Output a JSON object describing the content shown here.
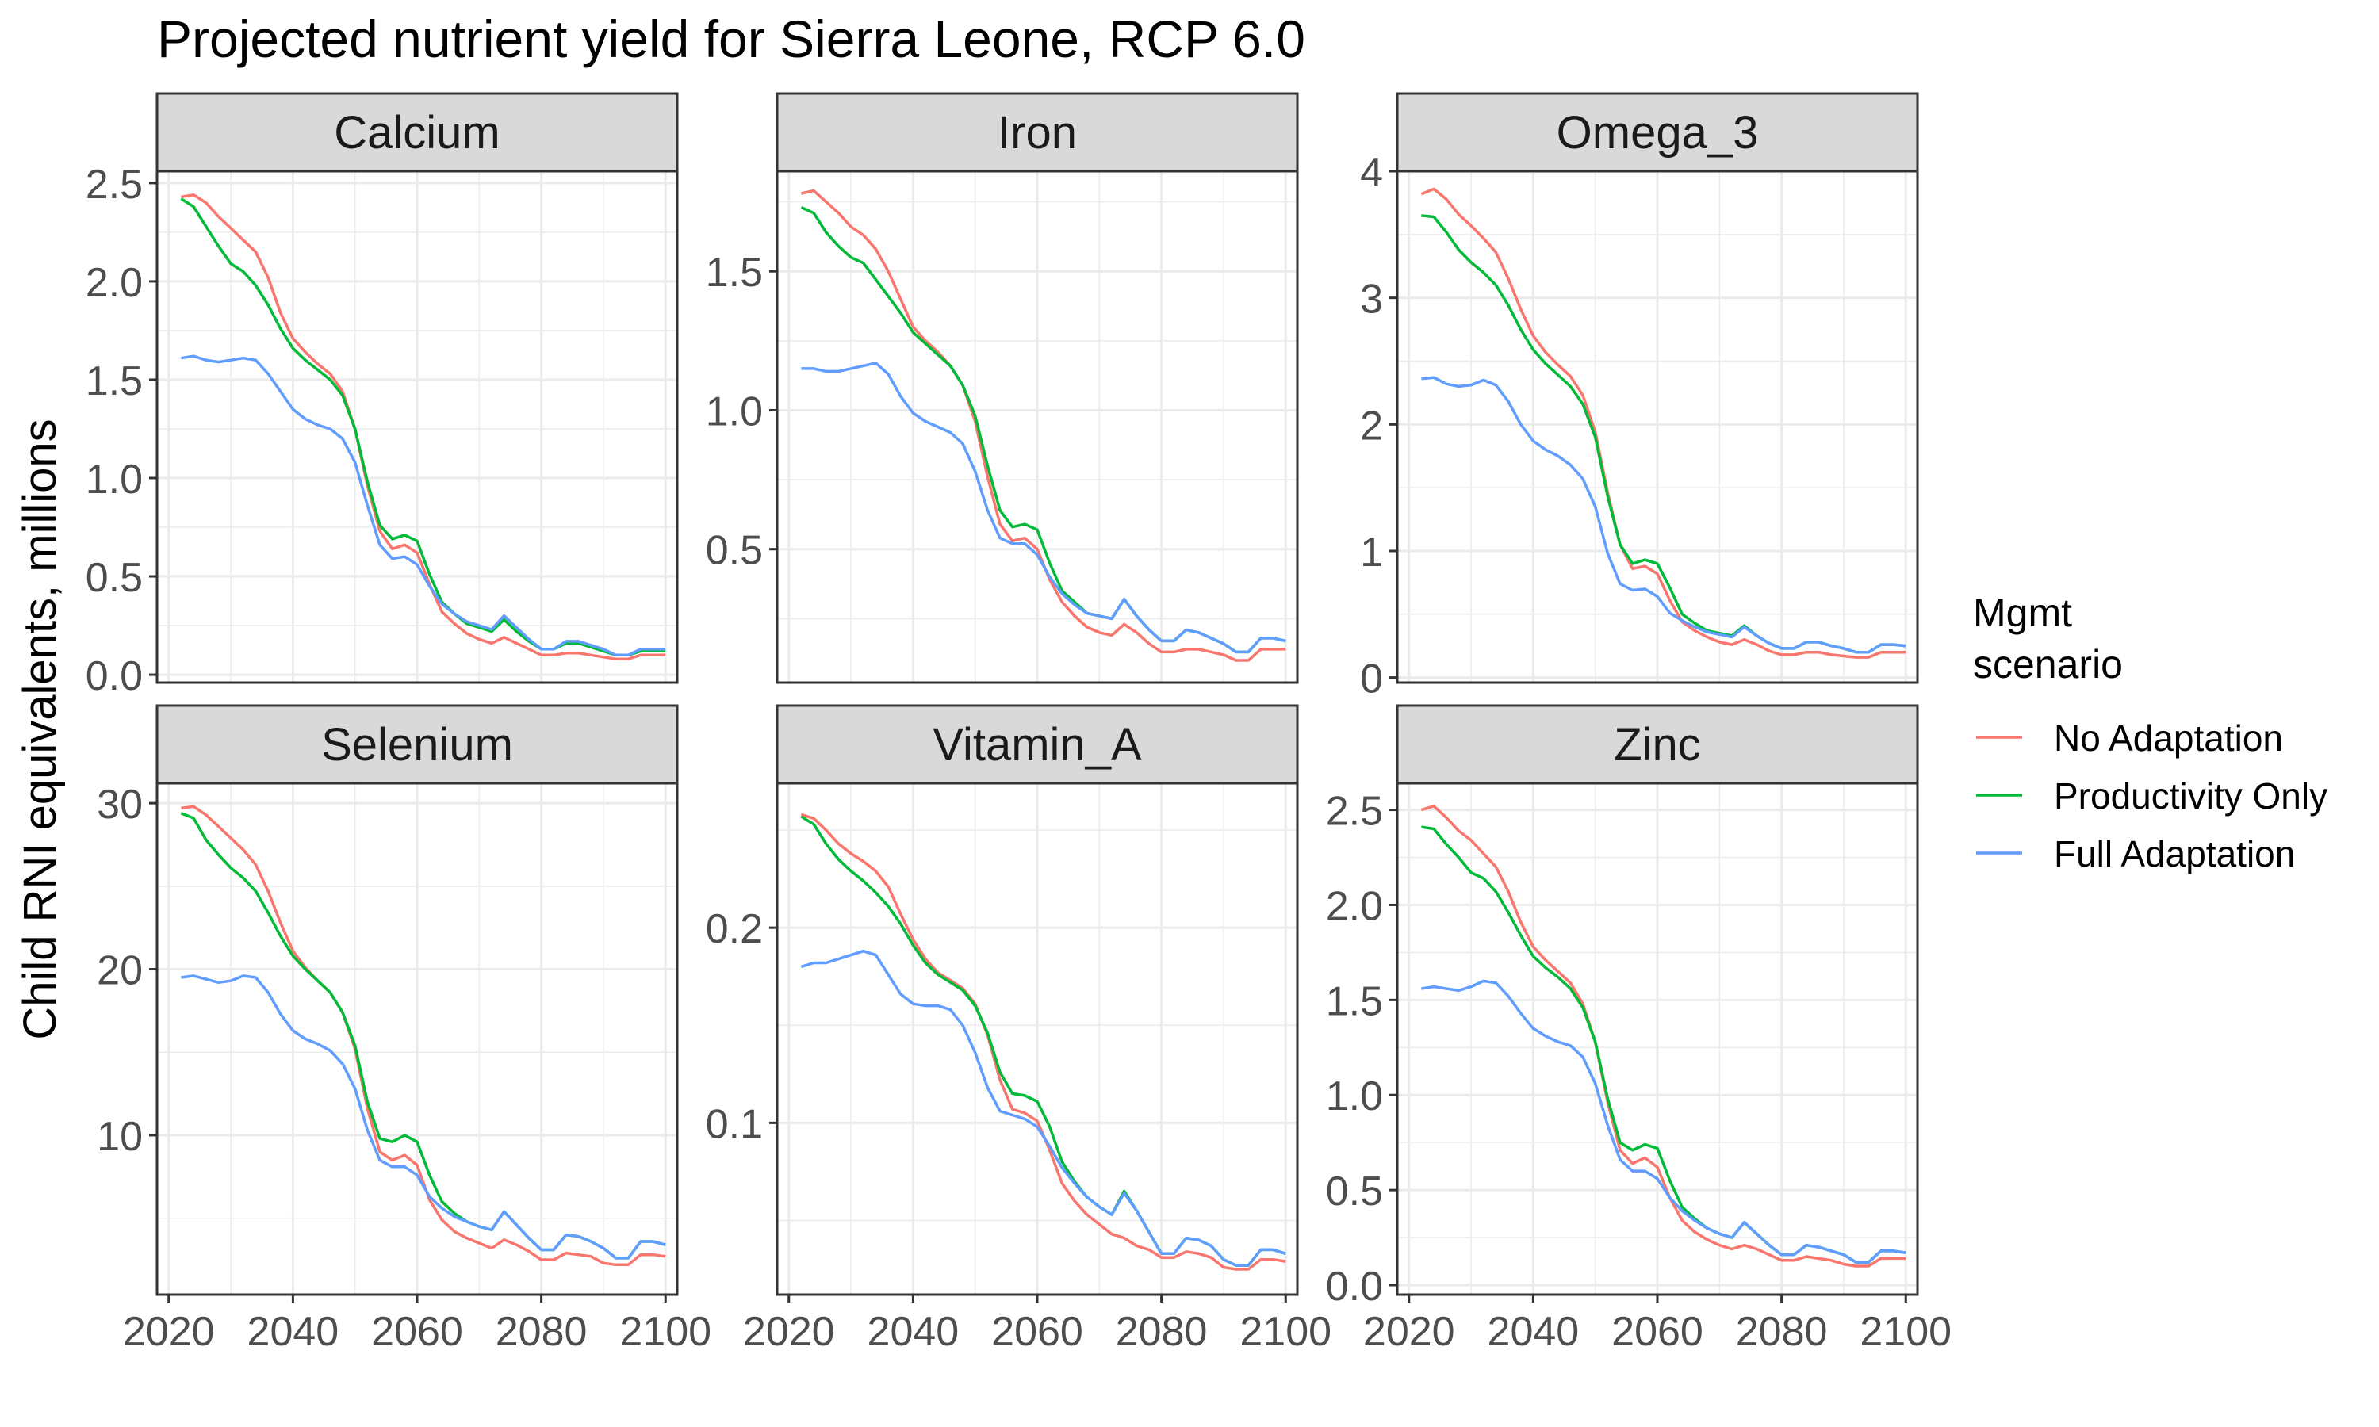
{
  "title": "Projected nutrient yield for Sierra Leone, RCP 6.0",
  "ylabel": "Child RNI equivalents, millions",
  "legend": {
    "title_line1": "Mgmt",
    "title_line2": "scenario",
    "position": "right"
  },
  "colors": {
    "no_adaptation": "#F8766D",
    "productivity_only": "#00BA38",
    "full_adaptation": "#619CFF",
    "strip_fill": "#D9D9D9",
    "grid": "#EBEBEB"
  },
  "chart_data": {
    "type": "line",
    "facets": "wrap 3 columns, free y scales",
    "grid": true,
    "x": [
      2022,
      2024,
      2026,
      2028,
      2030,
      2032,
      2034,
      2036,
      2038,
      2040,
      2042,
      2044,
      2046,
      2048,
      2050,
      2052,
      2054,
      2056,
      2058,
      2060,
      2062,
      2064,
      2066,
      2068,
      2070,
      2072,
      2074,
      2076,
      2078,
      2080,
      2082,
      2084,
      2086,
      2088,
      2090,
      2092,
      2094,
      2096,
      2098,
      2100
    ],
    "xlim": [
      2020,
      2100
    ],
    "xticks": [
      "2020",
      "2040",
      "2060",
      "2080",
      "2100"
    ],
    "series_names": [
      "No Adaptation",
      "Productivity Only",
      "Full Adaptation"
    ],
    "panels": [
      {
        "name": "Calcium",
        "ylim": [
          -0.04,
          2.56
        ],
        "yticks": [
          0.0,
          0.5,
          1.0,
          1.5,
          2.0,
          2.5
        ],
        "ytick_labels": [
          "0.0",
          "0.5",
          "1.0",
          "1.5",
          "2.0",
          "2.5"
        ],
        "series": [
          {
            "name": "No Adaptation",
            "values": [
              2.43,
              2.44,
              2.4,
              2.33,
              2.27,
              2.21,
              2.15,
              2.02,
              1.84,
              1.71,
              1.64,
              1.58,
              1.53,
              1.44,
              1.25,
              0.96,
              0.73,
              0.64,
              0.66,
              0.62,
              0.46,
              0.32,
              0.26,
              0.21,
              0.18,
              0.16,
              0.19,
              0.16,
              0.13,
              0.1,
              0.1,
              0.11,
              0.11,
              0.1,
              0.09,
              0.08,
              0.08,
              0.1,
              0.1,
              0.1
            ]
          },
          {
            "name": "Productivity Only",
            "values": [
              2.42,
              2.38,
              2.28,
              2.18,
              2.09,
              2.05,
              1.98,
              1.88,
              1.76,
              1.66,
              1.6,
              1.55,
              1.5,
              1.42,
              1.25,
              0.98,
              0.76,
              0.69,
              0.71,
              0.68,
              0.51,
              0.37,
              0.31,
              0.26,
              0.24,
              0.22,
              0.28,
              0.22,
              0.17,
              0.13,
              0.13,
              0.16,
              0.16,
              0.14,
              0.12,
              0.1,
              0.1,
              0.12,
              0.12,
              0.12
            ]
          },
          {
            "name": "Full Adaptation",
            "values": [
              1.61,
              1.62,
              1.6,
              1.59,
              1.6,
              1.61,
              1.6,
              1.53,
              1.44,
              1.35,
              1.3,
              1.27,
              1.25,
              1.2,
              1.08,
              0.86,
              0.66,
              0.59,
              0.6,
              0.56,
              0.45,
              0.36,
              0.31,
              0.27,
              0.25,
              0.23,
              0.3,
              0.24,
              0.18,
              0.13,
              0.13,
              0.17,
              0.17,
              0.15,
              0.13,
              0.1,
              0.1,
              0.13,
              0.13,
              0.13
            ]
          }
        ]
      },
      {
        "name": "Iron",
        "ylim": [
          0.02,
          1.86
        ],
        "yticks": [
          0.5,
          1.0,
          1.5
        ],
        "ytick_labels": [
          "0.5",
          "1.0",
          "1.5"
        ],
        "series": [
          {
            "name": "No Adaptation",
            "values": [
              1.78,
              1.79,
              1.75,
              1.71,
              1.66,
              1.63,
              1.58,
              1.5,
              1.4,
              1.3,
              1.25,
              1.21,
              1.16,
              1.09,
              0.96,
              0.76,
              0.59,
              0.53,
              0.54,
              0.5,
              0.39,
              0.31,
              0.26,
              0.22,
              0.2,
              0.19,
              0.23,
              0.2,
              0.16,
              0.13,
              0.13,
              0.14,
              0.14,
              0.13,
              0.12,
              0.1,
              0.1,
              0.14,
              0.14,
              0.14
            ]
          },
          {
            "name": "Productivity Only",
            "values": [
              1.73,
              1.71,
              1.64,
              1.59,
              1.55,
              1.53,
              1.47,
              1.41,
              1.35,
              1.28,
              1.24,
              1.2,
              1.16,
              1.09,
              0.98,
              0.8,
              0.64,
              0.58,
              0.59,
              0.57,
              0.45,
              0.35,
              0.31,
              0.27,
              0.26,
              0.25,
              0.32,
              0.26,
              0.21,
              0.17,
              0.17,
              0.21,
              0.2,
              0.18,
              0.16,
              0.13,
              0.13,
              0.18,
              0.18,
              0.17
            ]
          },
          {
            "name": "Full Adaptation",
            "values": [
              1.15,
              1.15,
              1.14,
              1.14,
              1.15,
              1.16,
              1.17,
              1.13,
              1.05,
              0.99,
              0.96,
              0.94,
              0.92,
              0.88,
              0.78,
              0.64,
              0.54,
              0.52,
              0.52,
              0.48,
              0.4,
              0.34,
              0.3,
              0.27,
              0.26,
              0.25,
              0.32,
              0.26,
              0.21,
              0.17,
              0.17,
              0.21,
              0.2,
              0.18,
              0.16,
              0.13,
              0.13,
              0.18,
              0.18,
              0.17
            ]
          }
        ]
      },
      {
        "name": "Omega_3",
        "ylim": [
          -0.04,
          4.0
        ],
        "yticks": [
          0,
          1,
          2,
          3,
          4
        ],
        "ytick_labels": [
          "0",
          "1",
          "2",
          "3",
          "4"
        ],
        "series": [
          {
            "name": "No Adaptation",
            "values": [
              3.82,
              3.86,
              3.78,
              3.66,
              3.57,
              3.47,
              3.36,
              3.15,
              2.91,
              2.7,
              2.57,
              2.47,
              2.38,
              2.23,
              1.94,
              1.46,
              1.05,
              0.86,
              0.88,
              0.82,
              0.61,
              0.44,
              0.37,
              0.32,
              0.28,
              0.26,
              0.3,
              0.26,
              0.21,
              0.18,
              0.18,
              0.2,
              0.2,
              0.18,
              0.17,
              0.16,
              0.16,
              0.2,
              0.2,
              0.2
            ]
          },
          {
            "name": "Productivity Only",
            "values": [
              3.65,
              3.64,
              3.52,
              3.38,
              3.28,
              3.2,
              3.1,
              2.94,
              2.75,
              2.59,
              2.48,
              2.39,
              2.3,
              2.16,
              1.9,
              1.43,
              1.05,
              0.9,
              0.93,
              0.9,
              0.71,
              0.5,
              0.43,
              0.37,
              0.35,
              0.33,
              0.41,
              0.33,
              0.27,
              0.23,
              0.23,
              0.28,
              0.28,
              0.25,
              0.23,
              0.2,
              0.2,
              0.26,
              0.26,
              0.25
            ]
          },
          {
            "name": "Full Adaptation",
            "values": [
              2.36,
              2.37,
              2.32,
              2.3,
              2.31,
              2.35,
              2.31,
              2.18,
              2.0,
              1.87,
              1.8,
              1.75,
              1.68,
              1.57,
              1.35,
              0.98,
              0.74,
              0.69,
              0.7,
              0.64,
              0.51,
              0.45,
              0.4,
              0.36,
              0.34,
              0.32,
              0.4,
              0.33,
              0.27,
              0.23,
              0.23,
              0.28,
              0.28,
              0.25,
              0.23,
              0.2,
              0.2,
              0.26,
              0.26,
              0.25
            ]
          }
        ]
      },
      {
        "name": "Selenium",
        "ylim": [
          0.4,
          31.2
        ],
        "yticks": [
          10,
          20,
          30
        ],
        "ytick_labels": [
          "10",
          "20",
          "30"
        ],
        "series": [
          {
            "name": "No Adaptation",
            "values": [
              29.7,
              29.8,
              29.3,
              28.6,
              27.9,
              27.2,
              26.3,
              24.7,
              22.8,
              21.1,
              20.1,
              19.3,
              18.6,
              17.4,
              15.2,
              11.6,
              9.0,
              8.5,
              8.8,
              8.2,
              6.1,
              4.9,
              4.2,
              3.8,
              3.5,
              3.2,
              3.7,
              3.4,
              3.0,
              2.5,
              2.5,
              2.9,
              2.8,
              2.7,
              2.3,
              2.2,
              2.2,
              2.8,
              2.8,
              2.7
            ]
          },
          {
            "name": "Productivity Only",
            "values": [
              29.4,
              29.1,
              27.8,
              26.9,
              26.1,
              25.5,
              24.7,
              23.4,
              22.0,
              20.8,
              20.0,
              19.3,
              18.6,
              17.4,
              15.4,
              12.0,
              9.8,
              9.6,
              10.0,
              9.6,
              7.6,
              6.0,
              5.3,
              4.8,
              4.5,
              4.3,
              5.4,
              4.6,
              3.8,
              3.1,
              3.1,
              4.0,
              3.9,
              3.6,
              3.2,
              2.6,
              2.6,
              3.6,
              3.6,
              3.4
            ]
          },
          {
            "name": "Full Adaptation",
            "values": [
              19.5,
              19.6,
              19.4,
              19.2,
              19.3,
              19.6,
              19.5,
              18.6,
              17.3,
              16.3,
              15.8,
              15.5,
              15.1,
              14.3,
              12.8,
              10.3,
              8.5,
              8.1,
              8.1,
              7.6,
              6.3,
              5.6,
              5.1,
              4.8,
              4.5,
              4.3,
              5.4,
              4.6,
              3.8,
              3.1,
              3.1,
              4.0,
              3.9,
              3.6,
              3.2,
              2.6,
              2.6,
              3.6,
              3.6,
              3.4
            ]
          }
        ]
      },
      {
        "name": "Vitamin_A",
        "ylim": [
          0.012,
          0.274
        ],
        "yticks": [
          0.1,
          0.2
        ],
        "ytick_labels": [
          "0.1",
          "0.2"
        ],
        "series": [
          {
            "name": "No Adaptation",
            "values": [
              0.258,
              0.256,
              0.25,
              0.243,
              0.238,
              0.234,
              0.229,
              0.221,
              0.207,
              0.194,
              0.184,
              0.177,
              0.173,
              0.169,
              0.161,
              0.145,
              0.122,
              0.107,
              0.105,
              0.101,
              0.086,
              0.069,
              0.06,
              0.053,
              0.048,
              0.043,
              0.041,
              0.037,
              0.035,
              0.031,
              0.031,
              0.034,
              0.033,
              0.031,
              0.026,
              0.025,
              0.025,
              0.03,
              0.03,
              0.029
            ]
          },
          {
            "name": "Productivity Only",
            "values": [
              0.257,
              0.253,
              0.243,
              0.235,
              0.229,
              0.224,
              0.218,
              0.211,
              0.202,
              0.191,
              0.182,
              0.176,
              0.172,
              0.168,
              0.16,
              0.146,
              0.126,
              0.115,
              0.114,
              0.111,
              0.098,
              0.08,
              0.07,
              0.062,
              0.057,
              0.053,
              0.065,
              0.055,
              0.044,
              0.033,
              0.033,
              0.041,
              0.04,
              0.037,
              0.03,
              0.027,
              0.027,
              0.035,
              0.035,
              0.033
            ]
          },
          {
            "name": "Full Adaptation",
            "values": [
              0.18,
              0.182,
              0.182,
              0.184,
              0.186,
              0.188,
              0.186,
              0.176,
              0.166,
              0.161,
              0.16,
              0.16,
              0.158,
              0.15,
              0.136,
              0.118,
              0.106,
              0.104,
              0.102,
              0.098,
              0.088,
              0.077,
              0.069,
              0.062,
              0.057,
              0.053,
              0.064,
              0.055,
              0.044,
              0.033,
              0.033,
              0.041,
              0.04,
              0.037,
              0.03,
              0.027,
              0.027,
              0.035,
              0.035,
              0.033
            ]
          }
        ]
      },
      {
        "name": "Zinc",
        "ylim": [
          -0.05,
          2.64
        ],
        "yticks": [
          0.0,
          0.5,
          1.0,
          1.5,
          2.0,
          2.5
        ],
        "ytick_labels": [
          "0.0",
          "0.5",
          "1.0",
          "1.5",
          "2.0",
          "2.5"
        ],
        "series": [
          {
            "name": "No Adaptation",
            "values": [
              2.5,
              2.52,
              2.46,
              2.39,
              2.34,
              2.27,
              2.2,
              2.07,
              1.91,
              1.78,
              1.71,
              1.65,
              1.59,
              1.48,
              1.28,
              0.96,
              0.71,
              0.64,
              0.67,
              0.62,
              0.46,
              0.34,
              0.28,
              0.24,
              0.21,
              0.19,
              0.21,
              0.19,
              0.16,
              0.13,
              0.13,
              0.15,
              0.14,
              0.13,
              0.11,
              0.1,
              0.1,
              0.14,
              0.14,
              0.14
            ]
          },
          {
            "name": "Productivity Only",
            "values": [
              2.41,
              2.4,
              2.32,
              2.25,
              2.17,
              2.14,
              2.07,
              1.96,
              1.84,
              1.73,
              1.67,
              1.62,
              1.56,
              1.46,
              1.28,
              0.98,
              0.75,
              0.71,
              0.74,
              0.72,
              0.55,
              0.41,
              0.35,
              0.3,
              0.27,
              0.25,
              0.33,
              0.27,
              0.21,
              0.16,
              0.16,
              0.21,
              0.2,
              0.18,
              0.16,
              0.12,
              0.12,
              0.18,
              0.18,
              0.17
            ]
          },
          {
            "name": "Full Adaptation",
            "values": [
              1.56,
              1.57,
              1.56,
              1.55,
              1.57,
              1.6,
              1.59,
              1.52,
              1.43,
              1.35,
              1.31,
              1.28,
              1.26,
              1.2,
              1.06,
              0.84,
              0.66,
              0.6,
              0.6,
              0.56,
              0.46,
              0.39,
              0.34,
              0.3,
              0.27,
              0.25,
              0.33,
              0.27,
              0.21,
              0.16,
              0.16,
              0.21,
              0.2,
              0.18,
              0.16,
              0.12,
              0.12,
              0.18,
              0.18,
              0.17
            ]
          }
        ]
      }
    ]
  }
}
